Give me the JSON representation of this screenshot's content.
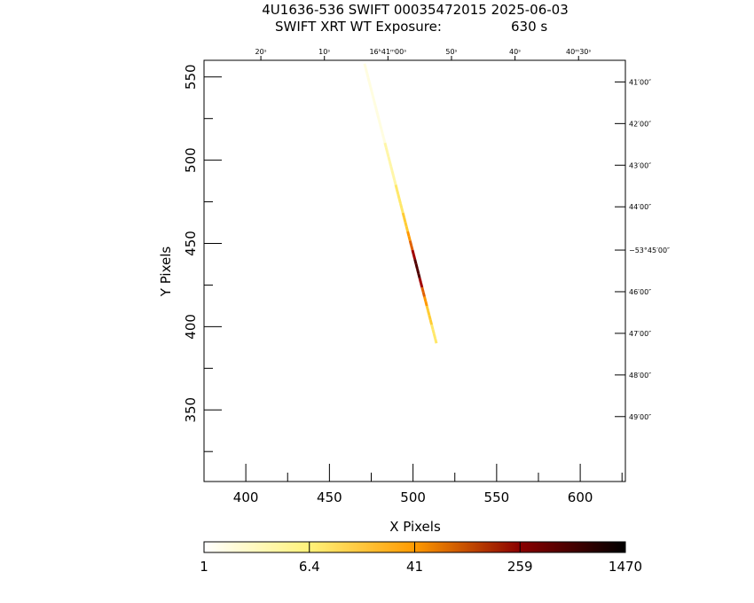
{
  "title_line1": "4U1636-536 SWIFT 00035472015 2025-06-03",
  "title_line2_left": "SWIFT XRT WT Exposure:",
  "title_line2_right": "630 s",
  "chart_data": {
    "type": "heatmap",
    "xlabel": "X Pixels",
    "ylabel": "Y Pixels",
    "xlim": [
      375,
      627
    ],
    "ylim": [
      307,
      560
    ],
    "x_ticks": [
      400,
      450,
      500,
      550,
      600
    ],
    "y_ticks": [
      350,
      400,
      450,
      500,
      550
    ],
    "top_ra_ticks": [
      {
        "x": 409,
        "label": "20ˢ"
      },
      {
        "x": 447,
        "label": "10ˢ"
      },
      {
        "x": 485,
        "label": "16ʰ41ᵐ00ˢ"
      },
      {
        "x": 523,
        "label": "50ˢ"
      },
      {
        "x": 561,
        "label": "40ˢ"
      },
      {
        "x": 599,
        "label": "40ᵐ30ˢ"
      }
    ],
    "right_dec_ticks": [
      {
        "y": 547,
        "label": "41′00″"
      },
      {
        "y": 522,
        "label": "42′00″"
      },
      {
        "y": 497,
        "label": "43′00″"
      },
      {
        "y": 472,
        "label": "44′00″"
      },
      {
        "y": 446,
        "label": "−53°45′00″"
      },
      {
        "y": 421,
        "label": "46′00″"
      },
      {
        "y": 396,
        "label": "47′00″"
      },
      {
        "y": 371,
        "label": "48′00″"
      },
      {
        "y": 346,
        "label": "49′00″"
      }
    ],
    "streak": {
      "start": [
        471,
        558
      ],
      "end": [
        514,
        390
      ],
      "peak": [
        503,
        435
      ],
      "description": "WT-mode 1D readout streak, brightest near center"
    },
    "colorbar": {
      "scale": "log",
      "min": 1,
      "max": 1470,
      "tick_labels": [
        "1",
        "6.4",
        "41",
        "259",
        "1470"
      ],
      "colors": [
        "#ffffff",
        "#fff27a",
        "#ff9a00",
        "#8a0000",
        "#000000"
      ]
    }
  }
}
